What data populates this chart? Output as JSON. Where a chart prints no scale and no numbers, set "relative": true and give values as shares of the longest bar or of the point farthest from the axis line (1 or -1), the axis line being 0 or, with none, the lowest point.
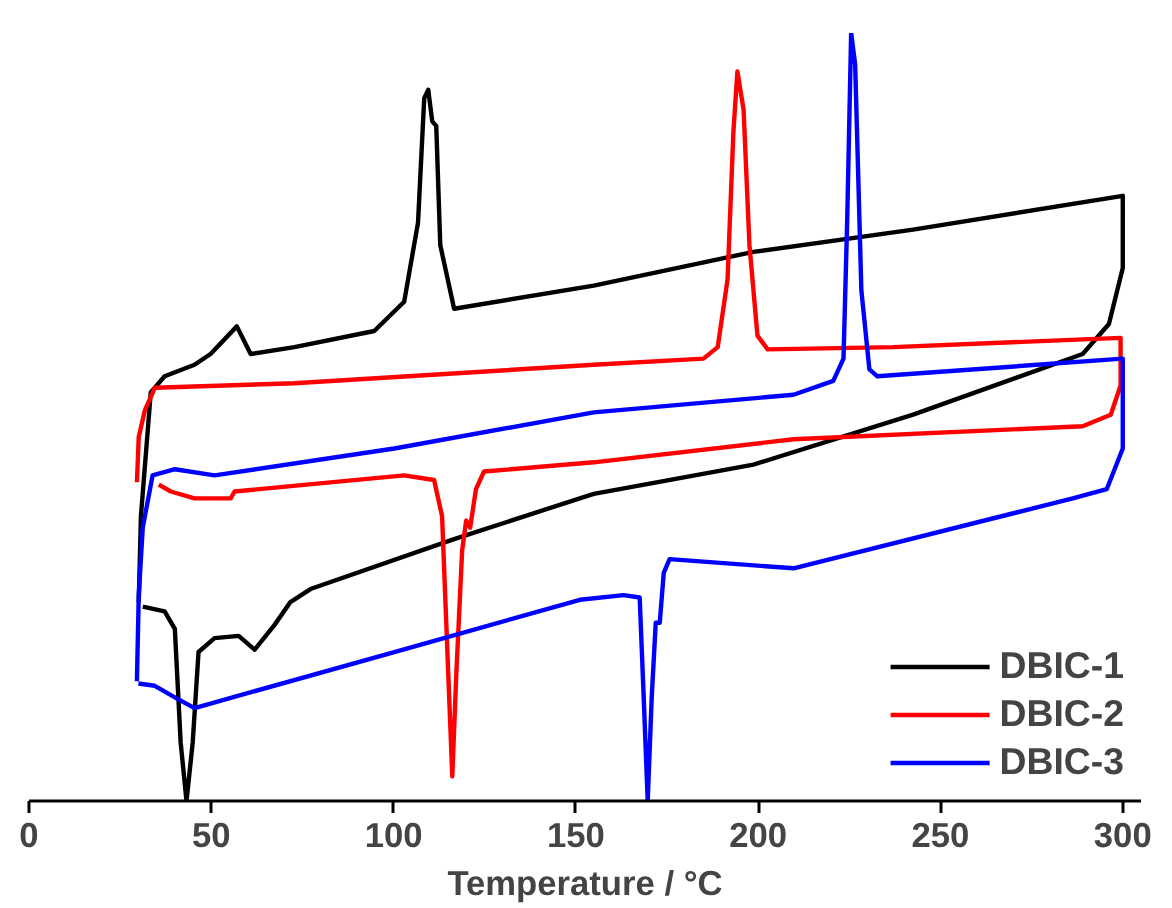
{
  "chart_data": {
    "type": "line",
    "relative": true,
    "xlabel": "Temperature / °C",
    "xlim": [
      0,
      305
    ],
    "xticks": [
      0,
      50,
      100,
      150,
      200,
      250,
      300
    ],
    "legend": "bottom right",
    "grid": false,
    "line_style": "solid",
    "series": [
      {
        "name": "DBIC-1",
        "color": "#000000",
        "x": [
          30.1,
          30.7,
          33.4,
          37.2,
          45.4,
          49.8,
          57.0,
          60.8,
          72.8,
          94.7,
          102.9,
          106.7,
          108.4,
          109.5,
          110.6,
          111.7,
          112.8,
          116.6,
          154.9,
          198.7,
          242.5,
          300.0,
          300.0,
          296.2,
          289.0,
          242.5,
          198.7,
          154.9,
          116.6,
          77.2,
          71.7,
          67.3,
          61.9,
          57.5,
          50.9,
          46.5,
          44.9,
          43.2,
          41.6,
          40.0,
          37.2,
          31.2
        ],
        "values": [
          0.259,
          0.371,
          0.532,
          0.553,
          0.568,
          0.582,
          0.618,
          0.582,
          0.591,
          0.612,
          0.65,
          0.753,
          0.915,
          0.926,
          0.885,
          0.879,
          0.724,
          0.641,
          0.671,
          0.715,
          0.744,
          0.788,
          0.694,
          0.621,
          0.582,
          0.503,
          0.438,
          0.4,
          0.341,
          0.276,
          0.259,
          0.229,
          0.197,
          0.215,
          0.212,
          0.194,
          0.076,
          0.0,
          0.076,
          0.224,
          0.247,
          0.253
        ]
      },
      {
        "name": "DBIC-2",
        "color": "#ff0000",
        "x": [
          29.6,
          30.1,
          31.8,
          34.5,
          72.8,
          154.9,
          185.0,
          188.9,
          191.6,
          193.2,
          194.3,
          196.0,
          197.6,
          199.8,
          202.6,
          237.0,
          299.4,
          299.4,
          296.7,
          289.0,
          209.7,
          154.9,
          124.8,
          122.6,
          121.0,
          119.9,
          118.8,
          117.2,
          116.1,
          115.0,
          113.3,
          111.1,
          102.9,
          56.4,
          55.3,
          45.4,
          38.9,
          35.6
        ],
        "values": [
          0.415,
          0.474,
          0.509,
          0.538,
          0.544,
          0.568,
          0.576,
          0.591,
          0.679,
          0.871,
          0.95,
          0.9,
          0.724,
          0.606,
          0.588,
          0.591,
          0.603,
          0.541,
          0.503,
          0.488,
          0.471,
          0.441,
          0.429,
          0.406,
          0.356,
          0.365,
          0.326,
          0.165,
          0.032,
          0.165,
          0.371,
          0.418,
          0.424,
          0.403,
          0.394,
          0.394,
          0.403,
          0.412
        ]
      },
      {
        "name": "DBIC-3",
        "color": "#0000ff",
        "x": [
          29.6,
          30.1,
          31.2,
          33.9,
          40.0,
          50.9,
          100.2,
          154.9,
          209.7,
          220.6,
          223.4,
          224.4,
          225.5,
          226.6,
          228.3,
          230.5,
          232.7,
          300.0,
          300.0,
          295.6,
          286.3,
          209.7,
          175.7,
          174.1,
          173.0,
          171.9,
          170.8,
          169.7,
          168.6,
          167.5,
          163.1,
          151.1,
          100.2,
          45.4,
          40.0,
          34.5,
          30.0
        ],
        "values": [
          0.156,
          0.268,
          0.356,
          0.424,
          0.432,
          0.424,
          0.459,
          0.506,
          0.529,
          0.547,
          0.576,
          0.753,
          1.0,
          0.959,
          0.665,
          0.562,
          0.553,
          0.576,
          0.459,
          0.406,
          0.394,
          0.303,
          0.315,
          0.297,
          0.232,
          0.232,
          0.135,
          0.0,
          0.135,
          0.265,
          0.268,
          0.262,
          0.194,
          0.121,
          0.135,
          0.15,
          0.153
        ]
      }
    ]
  }
}
